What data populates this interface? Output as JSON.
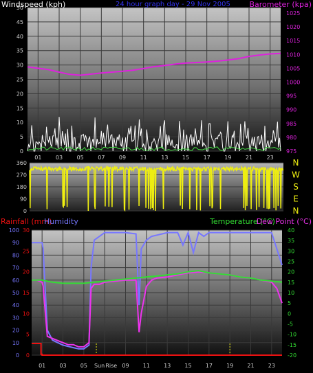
{
  "colors": {
    "wind": "#ffffff",
    "gust": "#ffffff",
    "windavg": "#44dd44",
    "baro": "#dd22dd",
    "dir": "#eeee11",
    "rain": "#ee1111",
    "humidity": "#7777ff",
    "temp": "#33dd33",
    "dewpoint": "#ee33ee",
    "grid": "#3a3a3a",
    "tick_text": "#cccccc"
  },
  "chart_data": [
    {
      "type": "line",
      "title": "24 hour graph day - 29 Nov 2005",
      "left_axis": {
        "label": "Windspeed (kph)",
        "ticks": [
          0,
          5,
          10,
          15,
          20,
          25,
          30,
          35,
          40,
          45,
          50
        ],
        "lim": [
          0,
          50
        ]
      },
      "right_axis": {
        "label": "Barometer (kpa)",
        "ticks": [
          975,
          980,
          985,
          990,
          995,
          1000,
          1005,
          1010,
          1015,
          1020,
          1025
        ],
        "lim": [
          975,
          1027
        ]
      },
      "x_ticks": [
        "01",
        "03",
        "05",
        "07",
        "09",
        "11",
        "13",
        "15",
        "17",
        "19",
        "21",
        "23"
      ],
      "x_range_hours": [
        0,
        24
      ],
      "series": [
        {
          "name": "Barometer",
          "axis": "right",
          "x": [
            0,
            1,
            2,
            3,
            4,
            5,
            6,
            7,
            8,
            9,
            10,
            11,
            12,
            13,
            14,
            15,
            16,
            17,
            18,
            19,
            20,
            21,
            22,
            23,
            24
          ],
          "y": [
            1005.5,
            1005,
            1004.5,
            1003.6,
            1002.8,
            1002.5,
            1002.9,
            1003.3,
            1003.6,
            1003.9,
            1004.3,
            1004.9,
            1005.6,
            1006,
            1006.5,
            1006.9,
            1007.1,
            1007.3,
            1007.6,
            1008,
            1008.5,
            1009.3,
            1009.8,
            1010.2,
            1010.4
          ]
        },
        {
          "name": "Wind speed",
          "axis": "left",
          "summary": "fluctuating 0-13 kph throughout the day, typically 2-6 kph"
        }
      ]
    },
    {
      "type": "line",
      "title": "",
      "left_axis": {
        "label": "",
        "ticks": [
          0,
          90,
          180,
          270,
          360
        ],
        "lim": [
          0,
          360
        ]
      },
      "right_axis": {
        "label": "",
        "ticks": [
          "N",
          "W",
          "S",
          "E",
          "N"
        ]
      },
      "series": [
        {
          "name": "Wind direction",
          "axis": "left",
          "summary": "mostly 300-330 degrees with frequent drops to ~0"
        }
      ]
    },
    {
      "type": "line",
      "left_axis_rain": {
        "label": "Rainfall (mm)",
        "ticks": [
          0,
          5,
          10,
          15,
          20,
          25,
          30
        ],
        "lim": [
          0,
          30
        ]
      },
      "left_axis_hum": {
        "label": "Humidity",
        "ticks": [
          0,
          10,
          20,
          30,
          40,
          50,
          60,
          70,
          80,
          90,
          100
        ],
        "lim": [
          0,
          100
        ]
      },
      "right_axis": {
        "label_temp": "Temperature (°C)",
        "label_dew": "Dew Point (°C)",
        "ticks": [
          -20,
          -15,
          -10,
          -5,
          0,
          5,
          10,
          15,
          20,
          25,
          30,
          35,
          40
        ],
        "lim": [
          -20,
          40
        ]
      },
      "x_ticks": [
        "01",
        "03",
        "05",
        "07",
        "09",
        "11",
        "13",
        "15",
        "17",
        "19",
        "21",
        "23"
      ],
      "markers": [
        {
          "hour": 6.5,
          "label": "Sun"
        },
        {
          "hour": 7.5,
          "label": "Rise"
        },
        {
          "hour": 19,
          "label": ""
        }
      ],
      "series": [
        {
          "name": "Humidity",
          "axis": "left_hum",
          "x": [
            0,
            0.5,
            1,
            1.1,
            1.5,
            2,
            2.5,
            3,
            3.5,
            4,
            4.5,
            5,
            5.5,
            5.7,
            6,
            6.5,
            7,
            8,
            9,
            10,
            10.3,
            10.5,
            11,
            11.5,
            12,
            12.5,
            13,
            14,
            14.5,
            15,
            15.5,
            16,
            16.5,
            17,
            18,
            19,
            20,
            21,
            22,
            23,
            23.5,
            24
          ],
          "y": [
            90,
            90,
            90,
            85,
            20,
            12,
            10,
            8,
            7,
            6,
            5,
            5,
            8,
            70,
            92,
            95,
            98,
            98,
            98,
            97,
            40,
            85,
            92,
            95,
            96,
            97,
            98,
            98,
            88,
            98,
            82,
            98,
            95,
            98,
            98,
            98,
            98,
            98,
            98,
            98,
            85,
            72
          ]
        },
        {
          "name": "Temperature",
          "axis": "right",
          "x": [
            0,
            1,
            2,
            3,
            4,
            5,
            6,
            7,
            8,
            9,
            10,
            11,
            12,
            13,
            14,
            15,
            16,
            17,
            18,
            19,
            20,
            21,
            22,
            23,
            24
          ],
          "y": [
            16,
            16,
            15,
            14.5,
            14.5,
            14.5,
            15,
            15.5,
            16,
            16.5,
            17,
            17.5,
            18,
            18.5,
            19,
            20,
            20.5,
            19.5,
            19,
            18.5,
            17.5,
            17,
            16,
            15.5,
            15
          ]
        },
        {
          "name": "Dew point",
          "axis": "right",
          "x": [
            0,
            0.5,
            1,
            1.1,
            1.5,
            2,
            2.5,
            3,
            3.5,
            4,
            4.5,
            5,
            5.5,
            5.7,
            6,
            6.5,
            7,
            8,
            9,
            10,
            10.3,
            10.5,
            11,
            11.5,
            12,
            13,
            14,
            15,
            16,
            17,
            18,
            19,
            20,
            21,
            22,
            23,
            23.5,
            24
          ],
          "y": [
            16,
            16,
            15,
            13,
            -11,
            -12,
            -13,
            -14,
            -15,
            -15,
            -16,
            -16,
            -14,
            12,
            14,
            14,
            15,
            15.5,
            16,
            16,
            -9,
            0,
            13,
            16,
            17,
            17.5,
            18.5,
            19.5,
            20,
            19.5,
            19,
            18.5,
            17.5,
            17,
            16,
            15,
            12,
            5
          ]
        },
        {
          "name": "Rainfall",
          "axis": "left_rain",
          "x": [
            0,
            0.9,
            0.9,
            1,
            1,
            24
          ],
          "y": [
            2.8,
            2.8,
            0.2,
            0.2,
            0,
            0
          ]
        }
      ]
    }
  ]
}
